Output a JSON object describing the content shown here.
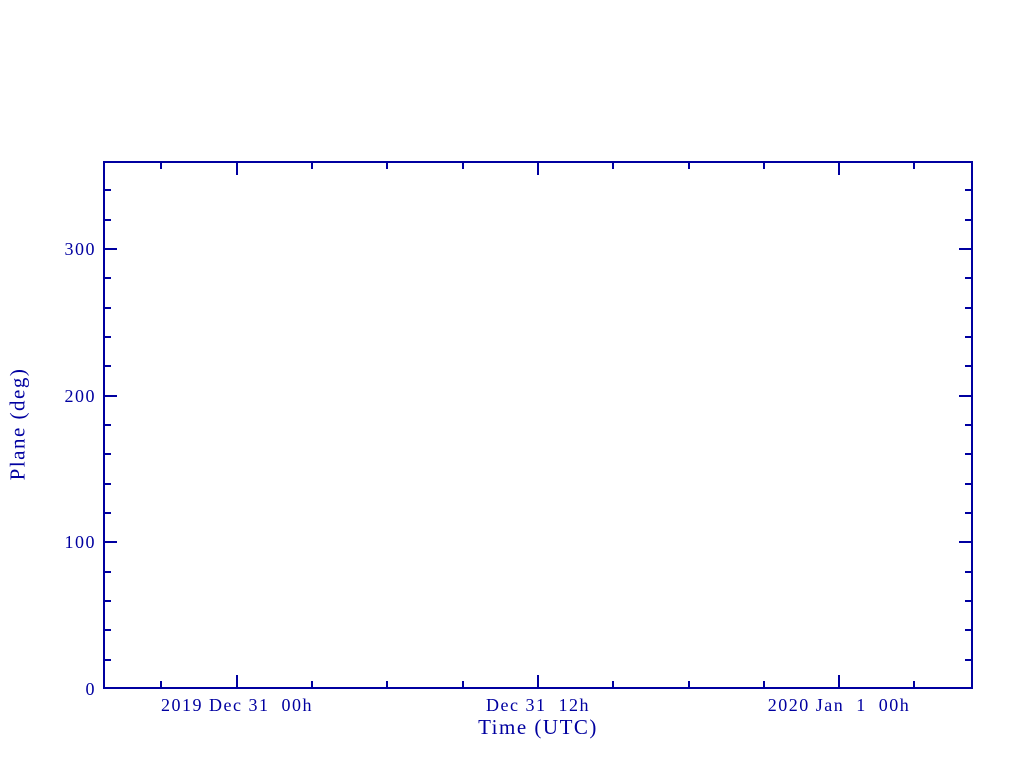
{
  "page": {
    "background_color": "#ffffff",
    "accent_color": "#0000a0"
  },
  "chart_data": {
    "type": "line",
    "title": "",
    "xlabel": "Time (UTC)",
    "ylabel": "Plane (deg)",
    "grid": false,
    "legend": false,
    "series": [],
    "x_axis": {
      "tick_side": "inward",
      "mirrored_ticks": true,
      "major_ticks": [
        {
          "label": "2019 Dec 31  00h",
          "pos": 0.1537
        },
        {
          "label": "Dec 31  12h",
          "pos": 0.5
        },
        {
          "label": "2020 Jan  1  00h",
          "pos": 0.846
        }
      ],
      "minor_tick_positions": [
        0.0672,
        0.2402,
        0.3268,
        0.4134,
        0.5866,
        0.6732,
        0.7598,
        0.9326
      ],
      "minor_interval_hours": 3,
      "major_interval_hours": 12
    },
    "y_axis": {
      "range": [
        0,
        360
      ],
      "major_ticks": [
        {
          "label": "0",
          "value": 0
        },
        {
          "label": "100",
          "value": 100
        },
        {
          "label": "200",
          "value": 200
        },
        {
          "label": "300",
          "value": 300
        }
      ],
      "minor_step": 20
    }
  }
}
